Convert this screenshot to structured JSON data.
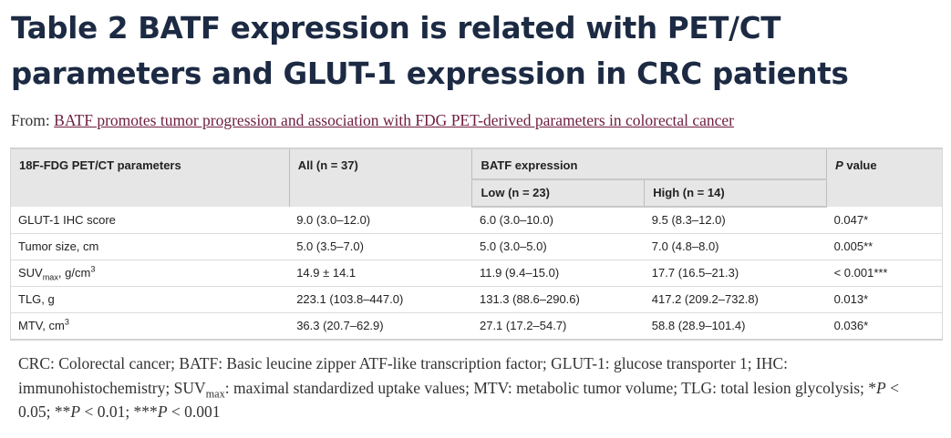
{
  "title": "Table 2 BATF expression is related with PET/CT parameters and GLUT-1 expression in CRC patients",
  "from": {
    "label": "From: ",
    "link_text": "BATF promotes tumor progression and association with FDG PET-derived parameters in colorectal cancer"
  },
  "table": {
    "headers": {
      "param": "18F-FDG PET/CT parameters",
      "all": "All (n = 37)",
      "batf": "BATF expression",
      "low": "Low (n = 23)",
      "high": "High (n = 14)",
      "p_italic": "P",
      "p_rest": " value"
    },
    "rows": [
      {
        "param": "GLUT-1 IHC score",
        "all": "9.0 (3.0–12.0)",
        "low": "6.0 (3.0–10.0)",
        "high": "9.5 (8.3–12.0)",
        "p": "0.047*"
      },
      {
        "param": "Tumor size, cm",
        "all": "5.0 (3.5–7.0)",
        "low": "5.0 (3.0–5.0)",
        "high": "7.0 (4.8–8.0)",
        "p": "0.005**"
      },
      {
        "param_main": "SUV",
        "param_sub": "max",
        "param_rest": ", g/cm",
        "param_sup": "3",
        "all": "14.9 ± 14.1",
        "low": "11.9 (9.4–15.0)",
        "high": "17.7 (16.5–21.3)",
        "p": "< 0.001***"
      },
      {
        "param": "TLG, g",
        "all": "223.1 (103.8–447.0)",
        "low": "131.3 (88.6–290.6)",
        "high": "417.2 (209.2–732.8)",
        "p": "0.013*"
      },
      {
        "param_main": "MTV, cm",
        "param_sup": "3",
        "all": "36.3 (20.7–62.9)",
        "low": "27.1 (17.2–54.7)",
        "high": "58.8 (28.9–101.4)",
        "p": "0.036*"
      }
    ]
  },
  "footnote": {
    "part1": "CRC: Colorectal cancer; BATF: Basic leucine zipper ATF-like transcription factor; GLUT-1: glucose transporter 1; IHC: immunohistochemistry; SUV",
    "sub": "max",
    "part2": ": maximal standardized uptake values; MTV: metabolic tumor volume; TLG: total lesion glycolysis; *",
    "p1": "P",
    "part3": " < 0.05; **",
    "p2": "P",
    "part4": " < 0.01; ***",
    "p3": "P",
    "part5": " < 0.001"
  }
}
